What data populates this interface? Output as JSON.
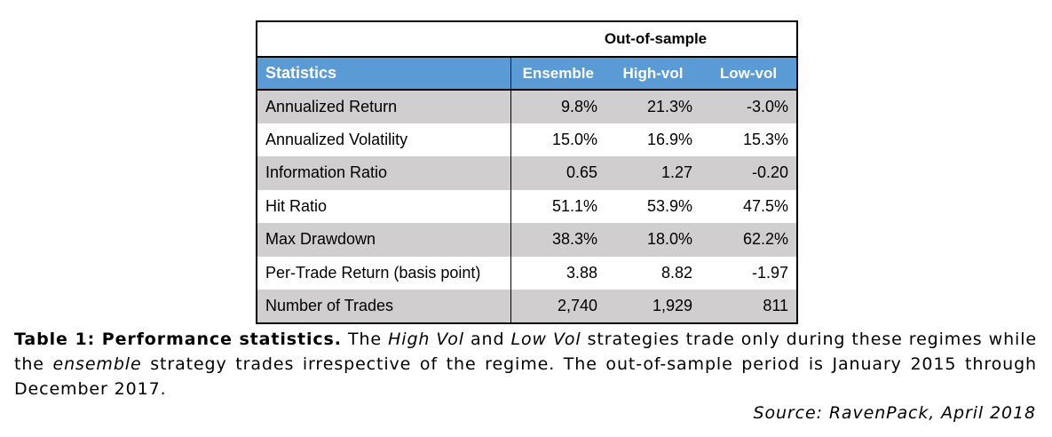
{
  "table": {
    "super_header": "Out-of-sample",
    "columns": [
      "Statistics",
      "Ensemble",
      "High-vol",
      "Low-vol"
    ],
    "rows": [
      {
        "label": "Annualized Return",
        "values": [
          "9.8%",
          "21.3%",
          "-3.0%"
        ]
      },
      {
        "label": "Annualized Volatility",
        "values": [
          "15.0%",
          "16.9%",
          "15.3%"
        ]
      },
      {
        "label": "Information Ratio",
        "values": [
          "0.65",
          "1.27",
          "-0.20"
        ]
      },
      {
        "label": "Hit Ratio",
        "values": [
          "51.1%",
          "53.9%",
          "47.5%"
        ]
      },
      {
        "label": "Max Drawdown",
        "values": [
          "38.3%",
          "18.0%",
          "62.2%"
        ]
      },
      {
        "label": "Per-Trade Return (basis point)",
        "values": [
          "3.88",
          "8.82",
          "-1.97"
        ]
      },
      {
        "label": "Number of Trades",
        "values": [
          "2,740",
          "1,929",
          "811"
        ]
      }
    ],
    "colors": {
      "header_bg": "#5b9bd5",
      "shaded_row_bg": "#d0cece"
    }
  },
  "caption": {
    "title": "Table 1: Performance statistics.",
    "part1": " The ",
    "term1": "High Vol",
    "part2": " and ",
    "term2": "Low Vol",
    "part3": " strategies trade only during these regimes while the ",
    "term3": "ensemble",
    "part4": " strategy trades irrespective of the regime. The out-of-sample period is January 2015 through December 2017."
  },
  "source": "Source: RavenPack, April 2018"
}
